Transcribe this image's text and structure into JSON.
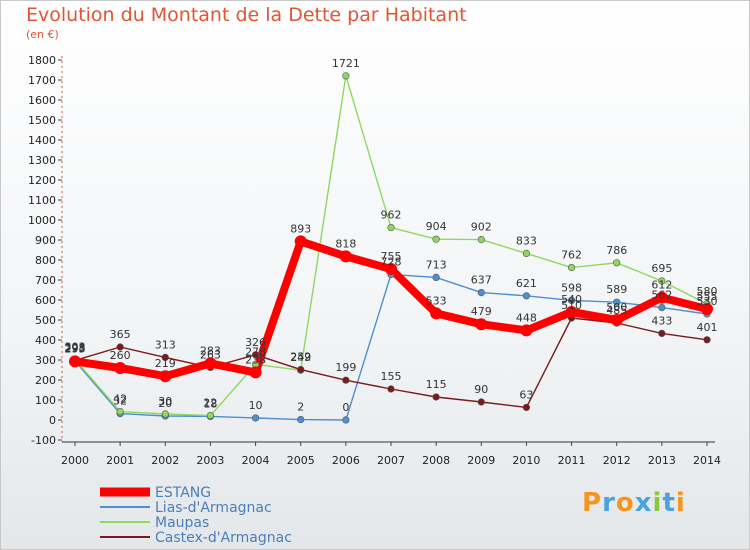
{
  "chart_data": {
    "type": "line",
    "title": "Evolution du Montant de la Dette par Habitant",
    "subtitle": "(en €)",
    "x": [
      "2000",
      "2001",
      "2002",
      "2003",
      "2004",
      "2005",
      "2006",
      "2007",
      "2008",
      "2009",
      "2010",
      "2011",
      "2012",
      "2013",
      "2014"
    ],
    "ylim": [
      -100,
      1800
    ],
    "yticks": [
      -100,
      0,
      100,
      200,
      300,
      400,
      500,
      600,
      700,
      800,
      900,
      1000,
      1100,
      1200,
      1300,
      1400,
      1500,
      1600,
      1700,
      1800
    ],
    "grid": false,
    "legend_position": "bottom-left",
    "series": [
      {
        "name": "ESTANG",
        "color": "#ff0000",
        "values": [
          293,
          260,
          219,
          283,
          238,
          893,
          818,
          755,
          533,
          479,
          448,
          540,
          500,
          612,
          555
        ]
      },
      {
        "name": "Lias-d'Armagnac",
        "color": "#4e8fd0",
        "values": [
          295,
          32,
          20,
          18,
          10,
          2,
          0,
          728,
          713,
          637,
          621,
          598,
          589,
          562,
          530
        ]
      },
      {
        "name": "Maupas",
        "color": "#8ed85c",
        "values": [
          303,
          42,
          30,
          22,
          278,
          249,
          1721,
          962,
          904,
          902,
          833,
          762,
          786,
          695,
          580
        ]
      },
      {
        "name": "Castex-d'Armagnac",
        "color": "#7a1a1a",
        "values": [
          298,
          365,
          313,
          263,
          326,
          252,
          199,
          155,
          115,
          90,
          63,
          510,
          485,
          433,
          401
        ]
      }
    ]
  },
  "logo": {
    "text": "Proxiti",
    "colors": [
      "#f7941d",
      "#4aa3df",
      "#f7941d",
      "#4aa3df",
      "#8cc63f",
      "#4aa3df",
      "#f7941d"
    ]
  }
}
